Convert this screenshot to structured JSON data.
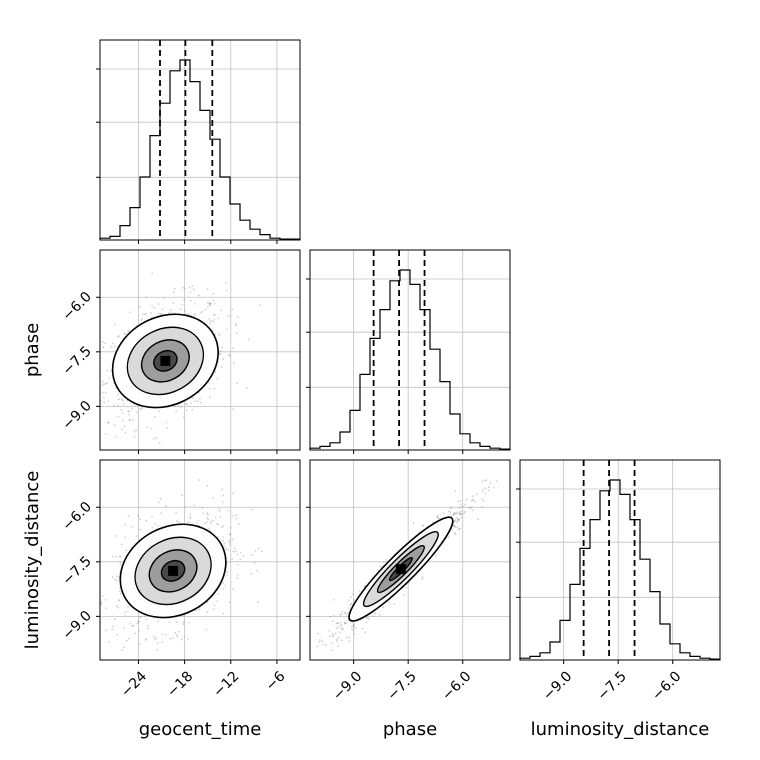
{
  "chart_data": {
    "type": "corner",
    "parameters": [
      "geocent_time",
      "phase",
      "luminosity_distance"
    ],
    "axis_labels": {
      "geocent_time": "geocent_time",
      "phase": "phase",
      "luminosity_distance": "luminosity_distance"
    },
    "ranges": {
      "geocent_time": [
        -29,
        -3
      ],
      "phase": [
        -10.2,
        -4.7
      ],
      "luminosity_distance": [
        -10.2,
        -4.7
      ]
    },
    "ticks": {
      "geocent_time": [
        -24,
        -18,
        -12,
        -6
      ],
      "phase": [
        -9.0,
        -7.5,
        -6.0
      ],
      "luminosity_distance": [
        -9.0,
        -7.5,
        -6.0
      ]
    },
    "tick_labels": {
      "geocent_time": [
        "−24",
        "−18",
        "−12",
        "−6"
      ],
      "phase": [
        "−9.0",
        "−7.5",
        "−6.0"
      ],
      "luminosity_distance": [
        "−9.0",
        "−7.5",
        "−6.0"
      ]
    },
    "quantiles": {
      "geocent_time": [
        -21.2,
        -17.9,
        -14.4
      ],
      "phase": [
        -8.45,
        -7.75,
        -7.05
      ],
      "luminosity_distance": [
        -8.45,
        -7.75,
        -7.05
      ]
    },
    "histograms": {
      "geocent_time": [
        0.01,
        0.02,
        0.08,
        0.18,
        0.35,
        0.58,
        0.76,
        0.94,
        1.0,
        0.88,
        0.72,
        0.56,
        0.35,
        0.2,
        0.11,
        0.06,
        0.03,
        0.01,
        0.005,
        0.005
      ],
      "phase": [
        0.01,
        0.02,
        0.04,
        0.1,
        0.22,
        0.42,
        0.62,
        0.78,
        0.94,
        1.0,
        0.92,
        0.78,
        0.56,
        0.38,
        0.2,
        0.09,
        0.04,
        0.02,
        0.01,
        0.005
      ],
      "luminosity_distance": [
        0.01,
        0.02,
        0.04,
        0.1,
        0.22,
        0.42,
        0.62,
        0.78,
        0.94,
        1.0,
        0.92,
        0.78,
        0.56,
        0.38,
        0.2,
        0.09,
        0.04,
        0.02,
        0.01,
        0.005
      ]
    },
    "density_peak": {
      "geocent_time|phase": [
        -20.5,
        -7.75
      ],
      "geocent_time|luminosity_distance": [
        -19.5,
        -7.75
      ],
      "phase|luminosity_distance": [
        -7.7,
        -7.7
      ]
    },
    "grid": true,
    "colors": {
      "line": "#000000",
      "grid": "#c0c0c0",
      "points": "#7f7f7f"
    }
  }
}
